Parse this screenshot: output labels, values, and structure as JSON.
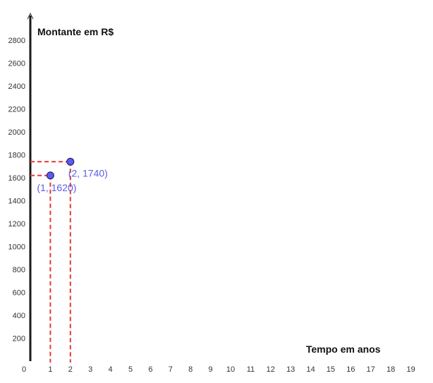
{
  "chart_data": {
    "type": "scatter",
    "ylabel": "Montante em R$",
    "xlabel": "Tempo em anos",
    "xlim": [
      0,
      19
    ],
    "ylim": [
      0,
      2800
    ],
    "x_ticks": [
      0,
      1,
      2,
      3,
      4,
      5,
      6,
      7,
      8,
      9,
      10,
      11,
      12,
      13,
      14,
      15,
      16,
      17,
      18,
      19
    ],
    "y_ticks": [
      200,
      400,
      600,
      800,
      1000,
      1200,
      1400,
      1600,
      1800,
      2000,
      2200,
      2400,
      2600,
      2800
    ],
    "grid": false,
    "points": [
      {
        "x": 1,
        "y": 1620,
        "label": "(1, 1620)"
      },
      {
        "x": 2,
        "y": 1740,
        "label": "(2, 1740)"
      }
    ],
    "colors": {
      "point_fill": "#5b5bf0",
      "point_stroke": "#1a1a66",
      "point_label": "#5c5ce6",
      "guide": "#e53935",
      "axis": "#1a1a1a"
    }
  }
}
